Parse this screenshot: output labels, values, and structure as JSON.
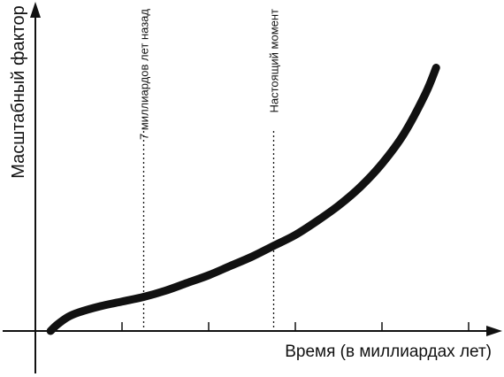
{
  "chart_data": {
    "type": "line",
    "title": "",
    "xlabel": "Время (в миллиардах лет)",
    "ylabel": "Масштабный фактор",
    "xlim": [
      0,
      21
    ],
    "ylim": [
      0,
      1.0
    ],
    "grid": false,
    "legend": "none",
    "ticks_x": [
      4,
      8,
      12,
      16,
      20
    ],
    "series": [
      {
        "x": [
          0.7,
          1.0,
          1.5,
          2.0,
          3.0,
          4.0,
          5.0,
          6.0,
          7.0,
          8.0,
          9.0,
          10.0,
          11.0,
          12.0,
          13.0,
          14.0,
          15.0,
          16.0,
          17.0,
          18.0,
          18.5
        ],
        "y": [
          0.0,
          0.02,
          0.045,
          0.06,
          0.08,
          0.095,
          0.11,
          0.13,
          0.155,
          0.18,
          0.21,
          0.24,
          0.275,
          0.31,
          0.355,
          0.405,
          0.465,
          0.54,
          0.635,
          0.765,
          0.85
        ]
      }
    ],
    "annotations": [
      {
        "x": 5.0,
        "label": "7 миллиардов лет назад"
      },
      {
        "x": 11.0,
        "label": "Настоящий момент"
      }
    ],
    "colors": {
      "curve": "#111111",
      "axis": "#111111",
      "marker_line": "#111111"
    }
  }
}
